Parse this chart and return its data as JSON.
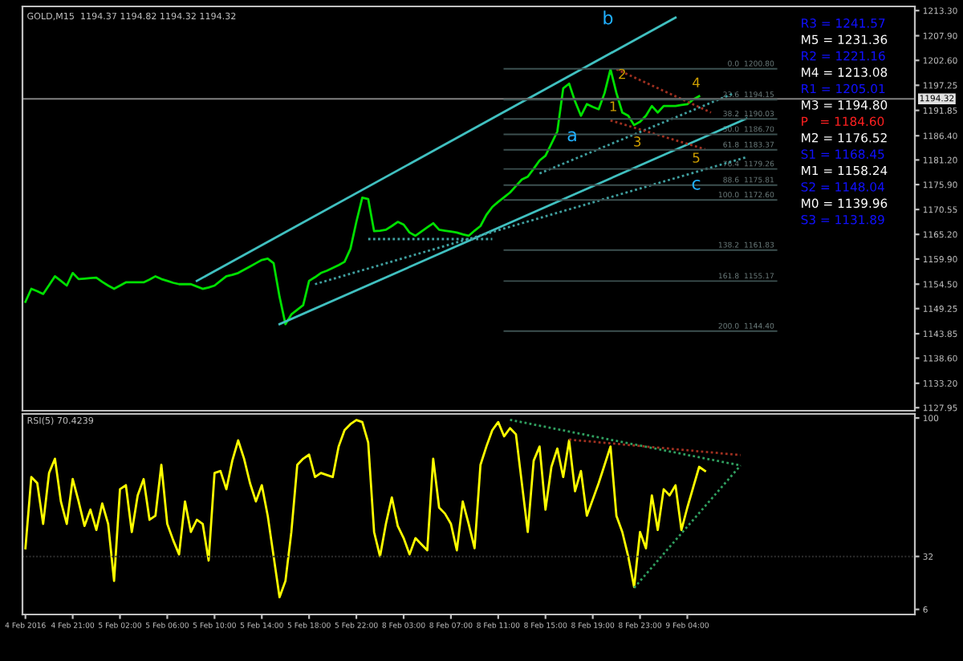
{
  "chart_data": [
    {
      "type": "line",
      "title": "GOLD,M15  1194.37 1194.82 1194.32 1194.32",
      "categories": [
        null,
        null,
        null,
        null,
        null,
        null,
        null,
        null,
        null,
        null,
        null,
        null,
        null,
        null,
        null,
        null,
        null,
        null,
        null,
        null,
        null,
        null,
        null,
        null,
        null,
        null,
        null,
        null,
        null,
        null,
        null,
        null,
        null,
        null,
        null,
        null,
        null,
        null,
        null,
        null,
        null,
        null,
        null,
        null,
        null,
        null,
        null,
        null,
        null,
        null,
        null,
        null,
        null,
        null,
        null,
        null,
        null,
        null,
        null,
        null,
        null,
        null,
        null,
        null,
        null,
        null,
        null,
        null,
        null,
        null,
        null,
        null,
        null,
        null,
        null,
        null,
        null,
        null,
        null,
        null,
        null,
        null,
        null,
        null,
        null,
        null,
        null,
        null,
        null,
        null,
        null,
        null,
        null,
        null,
        null,
        null,
        null,
        null,
        null,
        null,
        null,
        null,
        null,
        null,
        null,
        null,
        null,
        null,
        null,
        null,
        null,
        null,
        null,
        null,
        null,
        null,
        null,
        null,
        null,
        null,
        null,
        null,
        null
      ],
      "ylim": [
        1127.3,
        1214.2
      ],
      "yticks": [
        {
          "value": 1213.3,
          "label": "1213.30"
        },
        {
          "value": 1207.9,
          "label": "1207.90"
        },
        {
          "value": 1202.6,
          "label": "1202.60"
        },
        {
          "value": 1197.25,
          "label": "1197.25"
        },
        {
          "value": 1191.85,
          "label": "1191.85"
        },
        {
          "value": 1186.4,
          "label": "1186.40"
        },
        {
          "value": 1181.2,
          "label": "1181.20"
        },
        {
          "value": 1175.9,
          "label": "1175.90"
        },
        {
          "value": 1170.55,
          "label": "1170.55"
        },
        {
          "value": 1165.2,
          "label": "1165.20"
        },
        {
          "value": 1159.9,
          "label": "1159.90"
        },
        {
          "value": 1154.5,
          "label": "1154.50"
        },
        {
          "value": 1149.25,
          "label": "1149.25"
        },
        {
          "value": 1143.85,
          "label": "1143.85"
        },
        {
          "value": 1138.6,
          "label": "1138.60"
        },
        {
          "value": 1133.2,
          "label": "1133.20"
        },
        {
          "value": 1127.95,
          "label": "1127.95"
        }
      ],
      "tick_labels": "y",
      "marker": "none",
      "series": [
        {
          "color": "#00e000",
          "line_style": "solid",
          "values": [
            1150.7,
            1153.5,
            1153.0,
            1152.4,
            1154.3,
            1156.2,
            1155.2,
            1154.2,
            1156.9,
            1155.6,
            1155.7,
            1155.8,
            1155.9,
            1155.0,
            1154.2,
            1153.5,
            1154.2,
            1154.9,
            1154.9,
            1154.9,
            1154.9,
            1155.5,
            1156.2,
            1155.6,
            1155.2,
            1154.8,
            1154.5,
            1154.5,
            1154.5,
            1154.0,
            1153.5,
            1153.8,
            1154.2,
            1155.2,
            1156.2,
            1156.5,
            1156.9,
            1157.6,
            1158.3,
            1159.0,
            1159.7,
            1160.0,
            1159.0,
            1151.8,
            1145.9,
            1148.0,
            1149.0,
            1150.0,
            1155.2,
            1156.0,
            1156.9,
            1157.4,
            1158.0,
            1158.6,
            1159.3,
            1162.1,
            1167.9,
            1173.1,
            1172.8,
            1165.9,
            1166.0,
            1166.2,
            1167.0,
            1167.9,
            1167.3,
            1165.6,
            1164.9,
            1165.8,
            1166.7,
            1167.6,
            1166.2,
            1166.0,
            1165.8,
            1165.6,
            1165.2,
            1164.9,
            1166.0,
            1167.0,
            1169.4,
            1171.1,
            1172.2,
            1173.2,
            1174.2,
            1175.6,
            1177.0,
            1177.6,
            1179.3,
            1181.1,
            1182.1,
            1184.7,
            1187.3,
            1196.6,
            1197.6,
            1193.8,
            1190.7,
            1193.2,
            1192.6,
            1192.1,
            1195.6,
            1200.7,
            1195.6,
            1191.4,
            1190.7,
            1188.7,
            1189.4,
            1190.7,
            1192.8,
            1191.4,
            1192.8,
            1192.8,
            1192.8,
            1193.0,
            1193.2,
            1194.2,
            1194.9,
            null,
            null,
            null,
            null,
            null,
            null,
            null,
            null
          ]
        },
        {
          "color": "#40c0c0",
          "line_style": "solid",
          "values": [
            null,
            null,
            null,
            null,
            null,
            null,
            null,
            null,
            null,
            null,
            null,
            null,
            null,
            null,
            null,
            null,
            null,
            null,
            null,
            null,
            null,
            null,
            null,
            null,
            null,
            null,
            null,
            null,
            null,
            1155.2,
            null,
            null,
            null,
            null,
            null,
            null,
            null,
            null,
            null,
            null,
            null,
            null,
            null,
            null,
            null,
            null,
            null,
            null,
            null,
            null,
            null,
            null,
            null,
            null,
            null,
            null,
            null,
            null,
            null,
            null,
            null,
            null,
            null,
            null,
            null,
            null,
            null,
            null,
            null,
            null,
            null,
            null,
            null,
            null,
            null,
            null,
            null,
            null,
            null,
            null,
            null,
            null,
            null,
            null,
            null,
            null,
            null,
            null,
            null,
            null,
            null,
            null,
            null,
            null,
            null,
            null,
            null,
            null,
            null,
            null,
            null,
            null,
            null,
            null,
            null,
            null,
            null,
            null,
            null,
            null,
            1211.8,
            null,
            null,
            null,
            null,
            null,
            null,
            null,
            null,
            null,
            null,
            null,
            null
          ]
        },
        {
          "color": "#40c0c0",
          "line_style": "solid",
          "values": [
            null,
            null,
            null,
            null,
            null,
            null,
            null,
            null,
            null,
            null,
            null,
            null,
            null,
            null,
            null,
            null,
            null,
            null,
            null,
            null,
            null,
            null,
            null,
            null,
            null,
            null,
            null,
            null,
            null,
            null,
            null,
            null,
            null,
            null,
            null,
            null,
            null,
            null,
            null,
            null,
            null,
            null,
            null,
            1145.9,
            null,
            null,
            null,
            null,
            null,
            null,
            null,
            null,
            null,
            null,
            null,
            null,
            null,
            null,
            null,
            null,
            null,
            null,
            null,
            null,
            null,
            null,
            null,
            null,
            null,
            null,
            null,
            null,
            null,
            null,
            null,
            null,
            null,
            null,
            null,
            null,
            null,
            null,
            null,
            null,
            null,
            null,
            null,
            null,
            null,
            null,
            null,
            null,
            null,
            null,
            null,
            null,
            null,
            null,
            null,
            null,
            null,
            null,
            null,
            null,
            null,
            null,
            null,
            null,
            null,
            null,
            null,
            null,
            null,
            null,
            null,
            null,
            null,
            null,
            null,
            null,
            null,
            null,
            1190.1
          ]
        },
        {
          "color": "#40a0a0",
          "line_style": "dotted",
          "values": [
            null,
            null,
            null,
            null,
            null,
            null,
            null,
            null,
            null,
            null,
            null,
            null,
            null,
            null,
            null,
            null,
            null,
            null,
            null,
            null,
            null,
            null,
            null,
            null,
            null,
            null,
            null,
            null,
            null,
            null,
            null,
            null,
            null,
            null,
            null,
            null,
            null,
            null,
            null,
            null,
            null,
            null,
            null,
            null,
            null,
            null,
            null,
            null,
            null,
            null,
            null,
            null,
            null,
            null,
            null,
            null,
            null,
            null,
            null,
            null,
            null,
            null,
            null,
            null,
            null,
            null,
            null,
            null,
            null,
            null,
            null,
            null,
            null,
            null,
            null,
            null,
            null,
            null,
            null,
            null,
            null,
            null,
            null,
            null,
            null,
            null,
            null,
            1178.3,
            null,
            null,
            null,
            null,
            null,
            null,
            null,
            null,
            null,
            null,
            null,
            null,
            null,
            null,
            null,
            null,
            null,
            null,
            null,
            null,
            null,
            null,
            null,
            null,
            null,
            null,
            null,
            null,
            null,
            null,
            null,
            null,
            1195.6,
            null,
            null
          ]
        },
        {
          "color": "#40a0a0",
          "line_style": "dotted",
          "values": [
            null,
            null,
            null,
            null,
            null,
            null,
            null,
            null,
            null,
            null,
            null,
            null,
            null,
            null,
            null,
            null,
            null,
            null,
            null,
            null,
            null,
            null,
            null,
            null,
            null,
            null,
            null,
            null,
            null,
            null,
            null,
            null,
            null,
            null,
            null,
            null,
            null,
            null,
            null,
            null,
            null,
            null,
            null,
            null,
            null,
            null,
            null,
            null,
            null,
            1154.5,
            null,
            null,
            null,
            null,
            null,
            null,
            null,
            null,
            null,
            null,
            null,
            null,
            null,
            null,
            null,
            null,
            null,
            null,
            null,
            null,
            null,
            null,
            null,
            null,
            null,
            null,
            null,
            null,
            null,
            null,
            null,
            null,
            null,
            null,
            null,
            null,
            null,
            null,
            null,
            null,
            null,
            null,
            null,
            null,
            null,
            null,
            null,
            null,
            null,
            null,
            null,
            null,
            null,
            null,
            null,
            null,
            null,
            null,
            null,
            null,
            null,
            null,
            null,
            null,
            null,
            null,
            null,
            null,
            null,
            null,
            null,
            null,
            1181.8
          ]
        },
        {
          "color": "#40a0a0",
          "line_style": "dotted",
          "values": [
            null,
            null,
            null,
            null,
            null,
            null,
            null,
            null,
            null,
            null,
            null,
            null,
            null,
            null,
            null,
            null,
            null,
            null,
            null,
            null,
            null,
            null,
            null,
            null,
            null,
            null,
            null,
            null,
            null,
            null,
            null,
            null,
            null,
            null,
            null,
            null,
            null,
            null,
            null,
            null,
            null,
            null,
            null,
            null,
            null,
            null,
            null,
            null,
            null,
            null,
            null,
            null,
            null,
            null,
            null,
            null,
            null,
            null,
            1164.2,
            null,
            null,
            null,
            null,
            null,
            null,
            null,
            null,
            null,
            null,
            null,
            null,
            null,
            null,
            null,
            null,
            null,
            null,
            null,
            null,
            1164.2,
            null,
            null,
            null,
            null,
            null,
            null,
            null,
            null,
            null,
            null,
            null,
            null,
            null,
            null,
            null,
            null,
            null,
            null,
            null,
            null,
            null,
            null,
            null,
            null,
            null,
            null,
            null,
            null,
            null,
            null,
            null,
            null,
            null,
            null,
            null,
            null,
            null,
            null,
            null,
            null,
            null,
            null,
            null
          ]
        },
        {
          "color": "#a03020",
          "line_style": "dotted",
          "values": [
            null,
            null,
            null,
            null,
            null,
            null,
            null,
            null,
            null,
            null,
            null,
            null,
            null,
            null,
            null,
            null,
            null,
            null,
            null,
            null,
            null,
            null,
            null,
            null,
            null,
            null,
            null,
            null,
            null,
            null,
            null,
            null,
            null,
            null,
            null,
            null,
            null,
            null,
            null,
            null,
            null,
            null,
            null,
            null,
            null,
            null,
            null,
            null,
            null,
            null,
            null,
            null,
            null,
            null,
            null,
            null,
            null,
            null,
            null,
            null,
            null,
            null,
            null,
            null,
            null,
            null,
            null,
            null,
            null,
            null,
            null,
            null,
            null,
            null,
            null,
            null,
            null,
            null,
            null,
            null,
            null,
            null,
            null,
            null,
            null,
            null,
            null,
            null,
            null,
            null,
            null,
            null,
            null,
            null,
            null,
            null,
            null,
            null,
            null,
            null,
            1200.7,
            null,
            null,
            null,
            null,
            null,
            null,
            null,
            null,
            null,
            null,
            null,
            null,
            null,
            null,
            null,
            1191.4,
            null,
            null,
            null,
            null,
            null,
            null
          ]
        },
        {
          "color": "#a03020",
          "line_style": "dotted",
          "values": [
            null,
            null,
            null,
            null,
            null,
            null,
            null,
            null,
            null,
            null,
            null,
            null,
            null,
            null,
            null,
            null,
            null,
            null,
            null,
            null,
            null,
            null,
            null,
            null,
            null,
            null,
            null,
            null,
            null,
            null,
            null,
            null,
            null,
            null,
            null,
            null,
            null,
            null,
            null,
            null,
            null,
            null,
            null,
            null,
            null,
            null,
            null,
            null,
            null,
            null,
            null,
            null,
            null,
            null,
            null,
            null,
            null,
            null,
            null,
            null,
            null,
            null,
            null,
            null,
            null,
            null,
            null,
            null,
            null,
            null,
            null,
            null,
            null,
            null,
            null,
            null,
            null,
            null,
            null,
            null,
            null,
            null,
            null,
            null,
            null,
            null,
            null,
            null,
            null,
            null,
            null,
            null,
            null,
            null,
            null,
            null,
            null,
            null,
            null,
            1189.7,
            null,
            null,
            null,
            null,
            null,
            null,
            null,
            null,
            null,
            null,
            null,
            null,
            null,
            null,
            null,
            1183.5,
            null,
            null,
            null,
            null,
            null,
            null,
            null
          ]
        }
      ],
      "ref_lines": [
        {
          "axis": "y",
          "value": 1194.32,
          "label": "1194.32",
          "color": "#808080"
        },
        {
          "axis": "y",
          "value": 1200.8,
          "label": "0.0  1200.80",
          "color": "#3c5050"
        },
        {
          "axis": "y",
          "value": 1194.15,
          "label": "23.6  1194.15",
          "color": "#3c5050"
        },
        {
          "axis": "y",
          "value": 1190.03,
          "label": "38.2  1190.03",
          "color": "#3c5050"
        },
        {
          "axis": "y",
          "value": 1186.7,
          "label": "50.0  1186.70",
          "color": "#3c5050"
        },
        {
          "axis": "y",
          "value": 1183.37,
          "label": "61.8  1183.37",
          "color": "#3c5050"
        },
        {
          "axis": "y",
          "value": 1179.26,
          "label": "76.4  1179.26",
          "color": "#3c5050"
        },
        {
          "axis": "y",
          "value": 1175.81,
          "label": "88.6  1175.81",
          "color": "#3c5050"
        },
        {
          "axis": "y",
          "value": 1172.6,
          "label": "100.0  1172.60",
          "color": "#3c5050"
        },
        {
          "axis": "y",
          "value": 1161.83,
          "label": "138.2  1161.83",
          "color": "#3c5050"
        },
        {
          "axis": "y",
          "value": 1155.17,
          "label": "161.8  1155.17",
          "color": "#3c5050"
        },
        {
          "axis": "y",
          "value": 1144.4,
          "label": "200.0  1144.40",
          "color": "#3c5050"
        }
      ],
      "annotations": [
        "R3 = 1241.57",
        "M5 = 1231.36",
        "R2 = 1221.16",
        "M4 = 1213.08",
        "R1 = 1205.01",
        "M3 = 1194.80",
        "P   = 1184.60",
        "M2 = 1176.52",
        "S1 = 1168.45",
        "M1 = 1158.24",
        "S2 = 1148.04",
        "M0 = 1139.96",
        "S3 = 1131.89",
        "b",
        "a",
        "c",
        "1",
        "2",
        "3",
        "4",
        "5"
      ]
    },
    {
      "type": "line",
      "title": "RSI(5) 70.4239",
      "categories": [
        "4 Feb 2016",
        null,
        null,
        null,
        null,
        null,
        null,
        null,
        "4 Feb 21:00",
        null,
        null,
        null,
        null,
        null,
        null,
        null,
        "5 Feb 02:00",
        null,
        null,
        null,
        null,
        null,
        null,
        null,
        "5 Feb 06:00",
        null,
        null,
        null,
        null,
        null,
        null,
        null,
        "5 Feb 10:00",
        null,
        null,
        null,
        null,
        null,
        null,
        null,
        "5 Feb 14:00",
        null,
        null,
        null,
        null,
        null,
        null,
        null,
        "5 Feb 18:00",
        null,
        null,
        null,
        null,
        null,
        null,
        null,
        "5 Feb 22:00",
        null,
        null,
        null,
        null,
        null,
        null,
        null,
        "8 Feb 03:00",
        null,
        null,
        null,
        null,
        null,
        null,
        null,
        "8 Feb 07:00",
        null,
        null,
        null,
        null,
        null,
        null,
        null,
        "8 Feb 11:00",
        null,
        null,
        null,
        null,
        null,
        null,
        null,
        "8 Feb 15:00",
        null,
        null,
        null,
        null,
        null,
        null,
        null,
        "8 Feb 19:00",
        null,
        null,
        null,
        null,
        null,
        null,
        null,
        "8 Feb 23:00",
        null,
        null,
        null,
        null,
        null,
        null,
        null,
        "9 Feb 04:00",
        null,
        null,
        null,
        null,
        null,
        null,
        null,
        null,
        null,
        null
      ],
      "ylim": [
        3.5,
        102
      ],
      "yticks": [
        100,
        32,
        6
      ],
      "marker": "none",
      "series": [
        {
          "color": "#ffff00",
          "line_style": "solid",
          "values": [
            36,
            71,
            68,
            48,
            73,
            80,
            59,
            48,
            70,
            59,
            47,
            55,
            45,
            58,
            48,
            20,
            65,
            67,
            44,
            62,
            70,
            50,
            52,
            77,
            48,
            40,
            33,
            59,
            44,
            50,
            48,
            30,
            73,
            74,
            65,
            79,
            89,
            80,
            68,
            59,
            67,
            52,
            32,
            12,
            20,
            44,
            77,
            80,
            82,
            71,
            73,
            72,
            71,
            86,
            94,
            97,
            99,
            98,
            88,
            44,
            32,
            48,
            61,
            47,
            41,
            33,
            41,
            38,
            35,
            80,
            56,
            53,
            48,
            35,
            59,
            48,
            36,
            77,
            86,
            94,
            98,
            91,
            95,
            92,
            68,
            44,
            79,
            86,
            55,
            76,
            85,
            71,
            89,
            64,
            74,
            52,
            60,
            68,
            77,
            86,
            52,
            44,
            32,
            17,
            44,
            36,
            62,
            45,
            65,
            62,
            67,
            45,
            56,
            66,
            76,
            74,
            null,
            null,
            null,
            null,
            null,
            null,
            null
          ]
        },
        {
          "color": "#30a060",
          "line_style": "dotted",
          "values": [
            null,
            null,
            null,
            null,
            null,
            null,
            null,
            null,
            null,
            null,
            null,
            null,
            null,
            null,
            null,
            null,
            null,
            null,
            null,
            null,
            null,
            null,
            null,
            null,
            null,
            null,
            null,
            null,
            null,
            null,
            null,
            null,
            null,
            null,
            null,
            null,
            null,
            null,
            null,
            null,
            null,
            null,
            null,
            null,
            null,
            null,
            null,
            null,
            null,
            null,
            null,
            null,
            null,
            null,
            null,
            null,
            null,
            null,
            null,
            null,
            null,
            null,
            null,
            null,
            null,
            null,
            null,
            null,
            null,
            null,
            null,
            null,
            null,
            null,
            null,
            null,
            null,
            null,
            null,
            null,
            null,
            null,
            99.1,
            null,
            null,
            null,
            null,
            null,
            null,
            null,
            null,
            null,
            null,
            null,
            null,
            null,
            null,
            null,
            null,
            null,
            null,
            null,
            null,
            null,
            null,
            null,
            null,
            null,
            null,
            null,
            null,
            null,
            null,
            null,
            null,
            null,
            null,
            null,
            null,
            null,
            null,
            76.7,
            null
          ]
        },
        {
          "color": "#30a060",
          "line_style": "dotted",
          "values": [
            null,
            null,
            null,
            null,
            null,
            null,
            null,
            null,
            null,
            null,
            null,
            null,
            null,
            null,
            null,
            null,
            null,
            null,
            null,
            null,
            null,
            null,
            null,
            null,
            null,
            null,
            null,
            null,
            null,
            null,
            null,
            null,
            null,
            null,
            null,
            null,
            null,
            null,
            null,
            null,
            null,
            null,
            null,
            null,
            null,
            null,
            null,
            null,
            null,
            null,
            null,
            null,
            null,
            null,
            null,
            null,
            null,
            null,
            null,
            null,
            null,
            null,
            null,
            null,
            null,
            null,
            null,
            null,
            null,
            null,
            null,
            null,
            null,
            null,
            null,
            null,
            null,
            null,
            null,
            null,
            null,
            null,
            null,
            null,
            null,
            null,
            null,
            null,
            null,
            null,
            null,
            null,
            null,
            null,
            null,
            null,
            null,
            null,
            null,
            null,
            null,
            null,
            null,
            16.6,
            null,
            null,
            null,
            null,
            null,
            null,
            null,
            null,
            null,
            null,
            null,
            null,
            null,
            null,
            null,
            null,
            null,
            76.7,
            null
          ]
        },
        {
          "color": "#a03020",
          "line_style": "dotted",
          "values": [
            null,
            null,
            null,
            null,
            null,
            null,
            null,
            null,
            null,
            null,
            null,
            null,
            null,
            null,
            null,
            null,
            null,
            null,
            null,
            null,
            null,
            null,
            null,
            null,
            null,
            null,
            null,
            null,
            null,
            null,
            null,
            null,
            null,
            null,
            null,
            null,
            null,
            null,
            null,
            null,
            null,
            null,
            null,
            null,
            null,
            null,
            null,
            null,
            null,
            null,
            null,
            null,
            null,
            null,
            null,
            null,
            null,
            null,
            null,
            null,
            null,
            null,
            null,
            null,
            null,
            null,
            null,
            null,
            null,
            null,
            null,
            null,
            null,
            null,
            null,
            null,
            null,
            null,
            null,
            null,
            null,
            null,
            null,
            null,
            null,
            null,
            null,
            null,
            null,
            null,
            null,
            null,
            89.4,
            null,
            null,
            null,
            null,
            null,
            null,
            null,
            null,
            null,
            null,
            null,
            null,
            null,
            null,
            null,
            null,
            null,
            null,
            null,
            null,
            null,
            null,
            null,
            null,
            null,
            null,
            null,
            null,
            81.8,
            null
          ]
        }
      ],
      "ref_lines": [
        {
          "axis": "y",
          "value": 32,
          "color": "#303030",
          "line_style": "dotted"
        }
      ]
    }
  ]
}
